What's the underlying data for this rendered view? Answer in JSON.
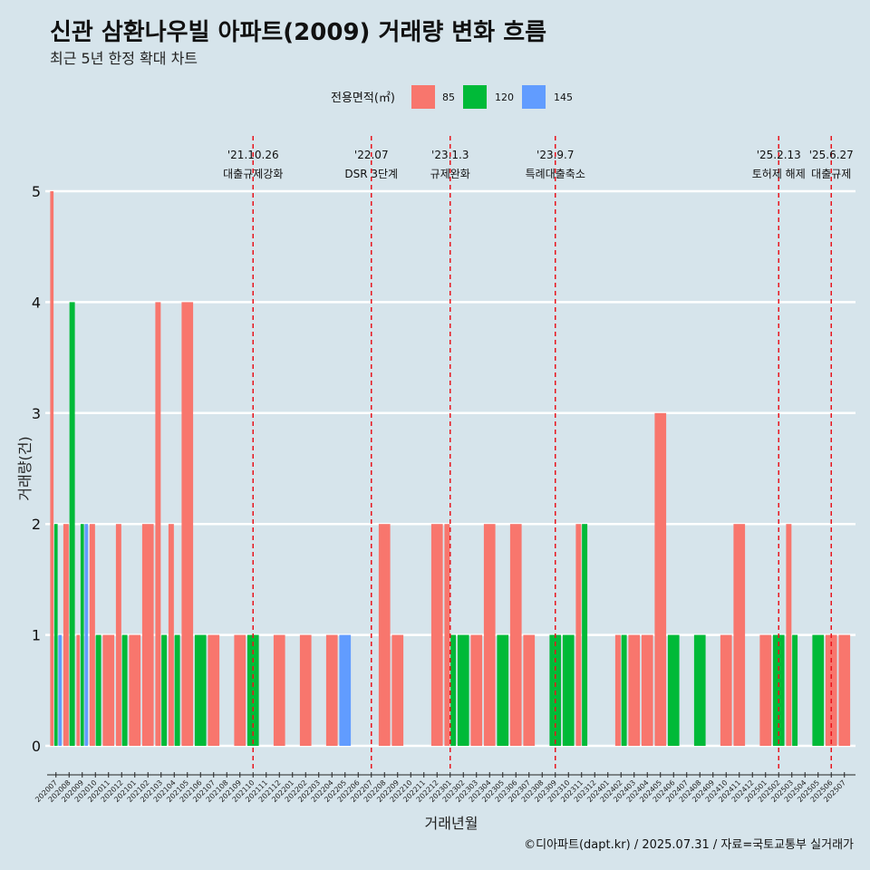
{
  "title": "신관 삼환나우빌 아파트(2009) 거래량 변화 흐름",
  "subtitle": "최근 5년 한정 확대 차트",
  "caption": "©디아파트(dapt.kr) / 2025.07.31 / 자료=국토교통부 실거래가",
  "colors": {
    "85": "#f8766d",
    "120": "#00ba38",
    "145": "#619cff",
    "grid": "#ffffff",
    "event": "#e8141c"
  },
  "chart_data": {
    "type": "bar",
    "xlabel": "거래년월",
    "ylabel": "거래량(건)",
    "ylim": [
      0,
      5
    ],
    "yticks": [
      0,
      1,
      2,
      3,
      4,
      5
    ],
    "legend": {
      "title": "전용면적(㎡)",
      "position": "top",
      "entries": [
        "85",
        "120",
        "145"
      ]
    },
    "months": [
      "202007",
      "202008",
      "202009",
      "202010",
      "202011",
      "202012",
      "202101",
      "202102",
      "202103",
      "202104",
      "202105",
      "202106",
      "202107",
      "202108",
      "202109",
      "202110",
      "202111",
      "202112",
      "202201",
      "202202",
      "202203",
      "202204",
      "202205",
      "202206",
      "202207",
      "202208",
      "202209",
      "202210",
      "202211",
      "202212",
      "202301",
      "202302",
      "202303",
      "202304",
      "202305",
      "202306",
      "202307",
      "202308",
      "202309",
      "202310",
      "202311",
      "202312",
      "202401",
      "202402",
      "202403",
      "202404",
      "202405",
      "202406",
      "202407",
      "202408",
      "202409",
      "202410",
      "202411",
      "202412",
      "202501",
      "202502",
      "202503",
      "202504",
      "202505",
      "202506",
      "202507"
    ],
    "x_tick_labels": [
      "202007",
      "202008",
      "202009",
      "202010",
      "202011",
      "202012",
      "202101",
      "202102",
      "202103",
      "202104",
      "202105",
      "202106",
      "202107",
      "202108",
      "202109",
      "202110",
      "202111",
      "202112",
      "202201",
      "202202",
      "202203",
      "202204",
      "202205",
      "202206",
      "202207",
      "202208",
      "202209",
      "202210",
      "202211",
      "202212",
      "202301",
      "202302",
      "202303",
      "202304",
      "202305",
      "202306",
      "202307",
      "202308",
      "202309",
      "202310",
      "202311",
      "202312",
      "202401",
      "202402",
      "202403",
      "202404",
      "202405",
      "202406",
      "202407",
      "202408",
      "202409",
      "202410",
      "202411",
      "202412",
      "202501",
      "202502",
      "202503",
      "202504",
      "202505",
      "202506",
      "202507"
    ],
    "bars": [
      {
        "month": "202007",
        "values": {
          "85": 5,
          "120": 2,
          "145": 1
        }
      },
      {
        "month": "202008",
        "values": {
          "85": 2,
          "120": 4
        }
      },
      {
        "month": "202009",
        "values": {
          "85": 1,
          "120": 2,
          "145": 2
        }
      },
      {
        "month": "202010",
        "values": {
          "85": 2,
          "120": 1
        }
      },
      {
        "month": "202011",
        "values": {
          "85": 1
        }
      },
      {
        "month": "202012",
        "values": {
          "85": 2,
          "120": 1
        }
      },
      {
        "month": "202101",
        "values": {
          "85": 1
        }
      },
      {
        "month": "202102",
        "values": {
          "85": 2
        }
      },
      {
        "month": "202103",
        "values": {
          "85": 4,
          "120": 1
        }
      },
      {
        "month": "202104",
        "values": {
          "85": 2,
          "120": 1
        }
      },
      {
        "month": "202105",
        "values": {
          "85": 4
        }
      },
      {
        "month": "202106",
        "values": {
          "120": 1
        }
      },
      {
        "month": "202107",
        "values": {
          "85": 1
        }
      },
      {
        "month": "202108",
        "values": {}
      },
      {
        "month": "202109",
        "values": {
          "85": 1
        }
      },
      {
        "month": "202110",
        "values": {
          "120": 1
        }
      },
      {
        "month": "202111",
        "values": {}
      },
      {
        "month": "202112",
        "values": {
          "85": 1
        }
      },
      {
        "month": "202201",
        "values": {}
      },
      {
        "month": "202202",
        "values": {
          "85": 1
        }
      },
      {
        "month": "202203",
        "values": {}
      },
      {
        "month": "202204",
        "values": {
          "85": 1
        }
      },
      {
        "month": "202205",
        "values": {
          "145": 1
        }
      },
      {
        "month": "202206",
        "values": {}
      },
      {
        "month": "202207",
        "values": {}
      },
      {
        "month": "202208",
        "values": {
          "85": 2
        }
      },
      {
        "month": "202209",
        "values": {
          "85": 1
        }
      },
      {
        "month": "202210",
        "values": {}
      },
      {
        "month": "202211",
        "values": {}
      },
      {
        "month": "202212",
        "values": {
          "85": 2
        }
      },
      {
        "month": "202301",
        "values": {
          "85": 2,
          "120": 1
        }
      },
      {
        "month": "202302",
        "values": {
          "120": 1
        }
      },
      {
        "month": "202303",
        "values": {
          "85": 1
        }
      },
      {
        "month": "202304",
        "values": {
          "85": 2
        }
      },
      {
        "month": "202305",
        "values": {
          "120": 1
        }
      },
      {
        "month": "202306",
        "values": {
          "85": 2
        }
      },
      {
        "month": "202307",
        "values": {
          "85": 1
        }
      },
      {
        "month": "202308",
        "values": {}
      },
      {
        "month": "202309",
        "values": {
          "120": 1
        }
      },
      {
        "month": "202310",
        "values": {
          "120": 1
        }
      },
      {
        "month": "202311",
        "values": {
          "85": 2,
          "120": 2
        }
      },
      {
        "month": "202312",
        "values": {}
      },
      {
        "month": "202401",
        "values": {}
      },
      {
        "month": "202402",
        "values": {
          "85": 1,
          "120": 1
        }
      },
      {
        "month": "202403",
        "values": {
          "85": 1
        }
      },
      {
        "month": "202404",
        "values": {
          "85": 1
        }
      },
      {
        "month": "202405",
        "values": {
          "85": 3
        }
      },
      {
        "month": "202406",
        "values": {
          "120": 1
        }
      },
      {
        "month": "202407",
        "values": {}
      },
      {
        "month": "202408",
        "values": {
          "120": 1
        }
      },
      {
        "month": "202409",
        "values": {}
      },
      {
        "month": "202410",
        "values": {
          "85": 1
        }
      },
      {
        "month": "202411",
        "values": {
          "85": 2
        }
      },
      {
        "month": "202412",
        "values": {}
      },
      {
        "month": "202501",
        "values": {
          "85": 1
        }
      },
      {
        "month": "202502",
        "values": {
          "120": 1
        }
      },
      {
        "month": "202503",
        "values": {
          "85": 2,
          "120": 1
        }
      },
      {
        "month": "202504",
        "values": {}
      },
      {
        "month": "202505",
        "values": {
          "120": 1
        }
      },
      {
        "month": "202506",
        "values": {
          "85": 1
        }
      },
      {
        "month": "202507",
        "values": {
          "85": 1
        }
      }
    ],
    "events": [
      {
        "month": "202110",
        "date": "'21.10.26",
        "label": "대출규제강화"
      },
      {
        "month": "202207",
        "date": "'22.07",
        "label": "DSR 3단계"
      },
      {
        "month": "202301",
        "date": "'23.1.3",
        "label": "규제완화"
      },
      {
        "month": "202309",
        "date": "'23.9.7",
        "label": "특례대출축소"
      },
      {
        "month": "202502",
        "date": "'25.2.13",
        "label": "토허제 해제"
      },
      {
        "month": "202506",
        "date": "'25.6.27",
        "label": "대출규제"
      }
    ]
  }
}
